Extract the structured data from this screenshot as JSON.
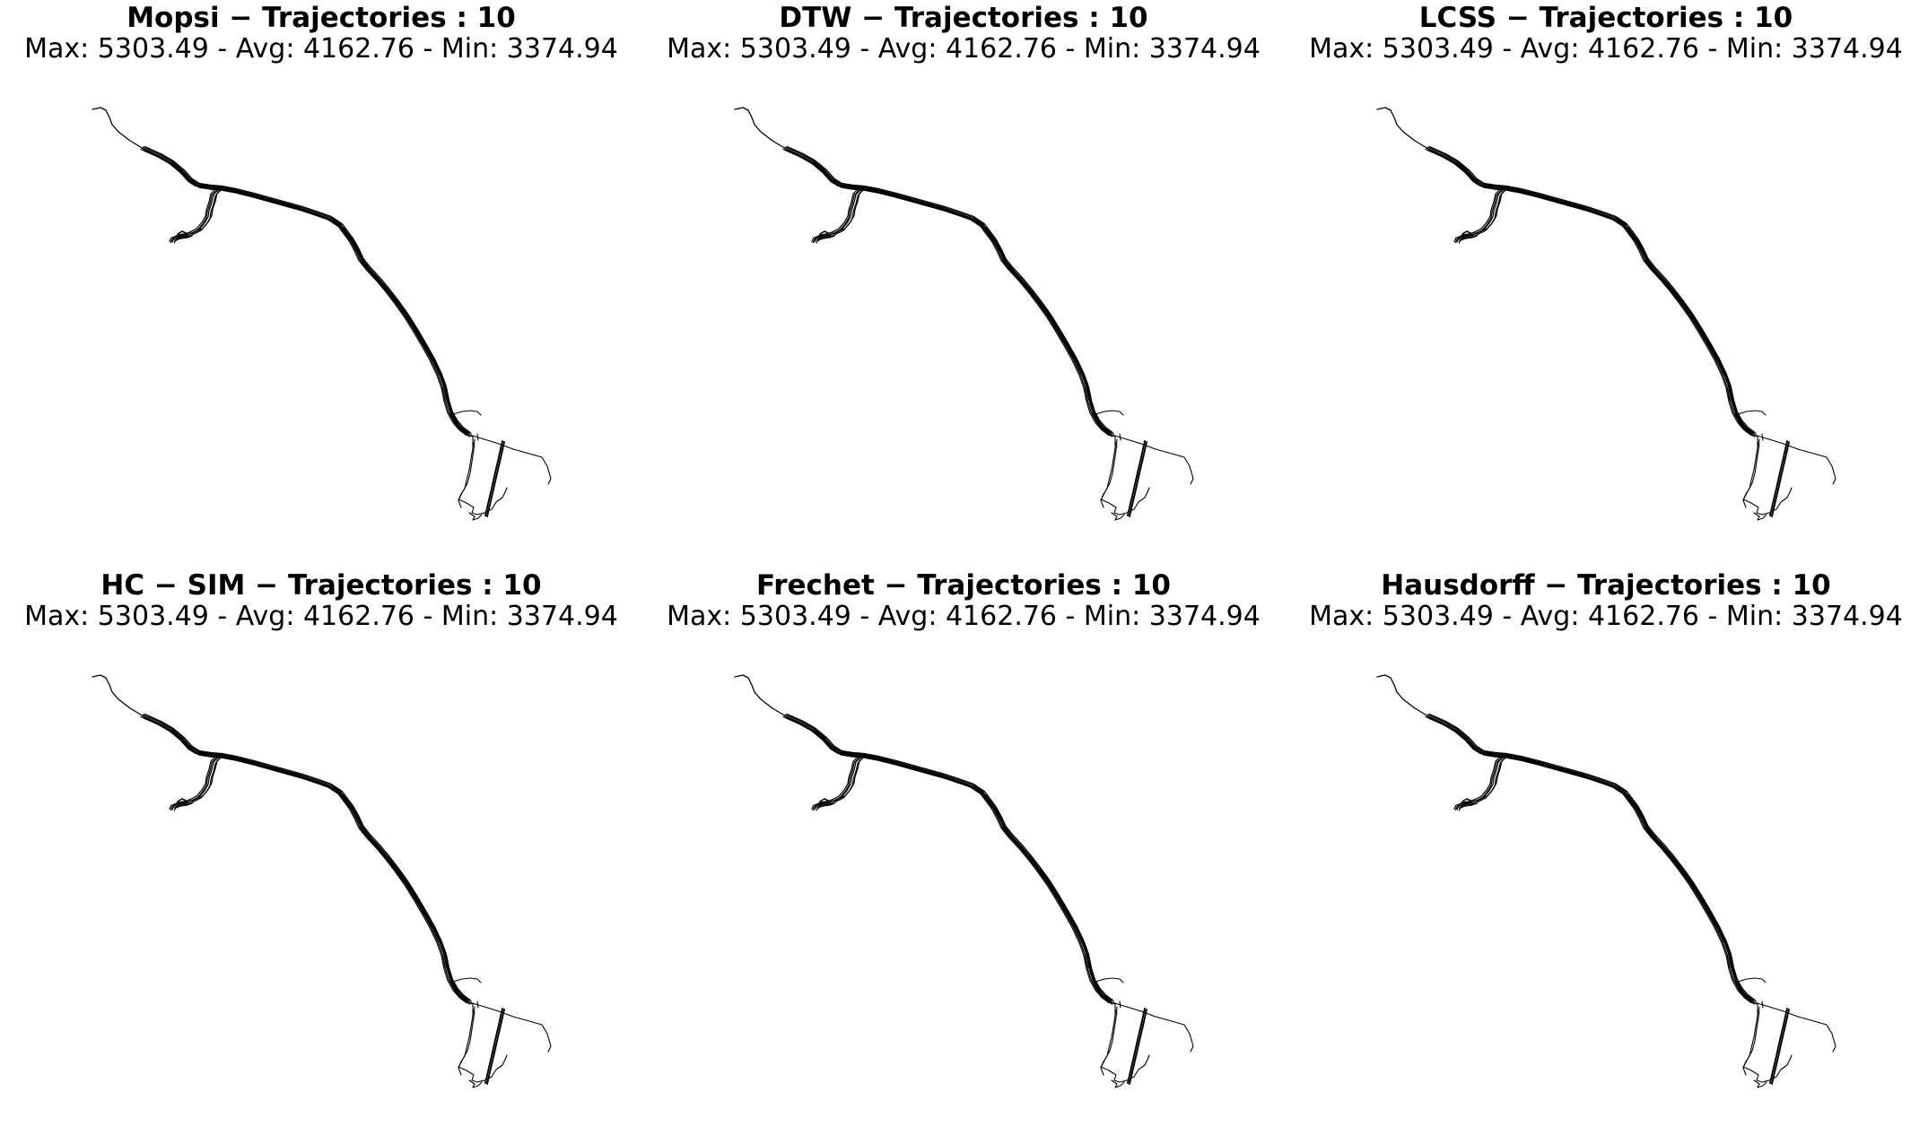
{
  "figure": {
    "background": "#ffffff",
    "line_color": "#000000"
  },
  "chart_data": [
    {
      "type": "line",
      "title": "Mopsi − Trajectories : 10",
      "subtitle": "Max: 5303.49 - Avg: 4162.76 - Min: 3374.94",
      "trajectory_count": 10,
      "max": 5303.49,
      "avg": 4162.76,
      "min": 3374.94,
      "axes_visible": false,
      "grid": false
    },
    {
      "type": "line",
      "title": "DTW − Trajectories : 10",
      "subtitle": "Max: 5303.49 - Avg: 4162.76 - Min: 3374.94",
      "trajectory_count": 10,
      "max": 5303.49,
      "avg": 4162.76,
      "min": 3374.94,
      "axes_visible": false,
      "grid": false
    },
    {
      "type": "line",
      "title": "LCSS − Trajectories : 10",
      "subtitle": "Max: 5303.49 - Avg: 4162.76 - Min: 3374.94",
      "trajectory_count": 10,
      "max": 5303.49,
      "avg": 4162.76,
      "min": 3374.94,
      "axes_visible": false,
      "grid": false
    },
    {
      "type": "line",
      "title": "HC − SIM − Trajectories : 10",
      "subtitle": "Max: 5303.49 - Avg: 4162.76 - Min: 3374.94",
      "trajectory_count": 10,
      "max": 5303.49,
      "avg": 4162.76,
      "min": 3374.94,
      "axes_visible": false,
      "grid": false
    },
    {
      "type": "line",
      "title": "Frechet − Trajectories : 10",
      "subtitle": "Max: 5303.49 - Avg: 4162.76 - Min: 3374.94",
      "trajectory_count": 10,
      "max": 5303.49,
      "avg": 4162.76,
      "min": 3374.94,
      "axes_visible": false,
      "grid": false
    },
    {
      "type": "line",
      "title": "Hausdorff − Trajectories : 10",
      "subtitle": "Max: 5303.49 - Avg: 4162.76 - Min: 3374.94",
      "trajectory_count": 10,
      "max": 5303.49,
      "avg": 4162.76,
      "min": 3374.94,
      "axes_visible": false,
      "grid": false
    }
  ]
}
